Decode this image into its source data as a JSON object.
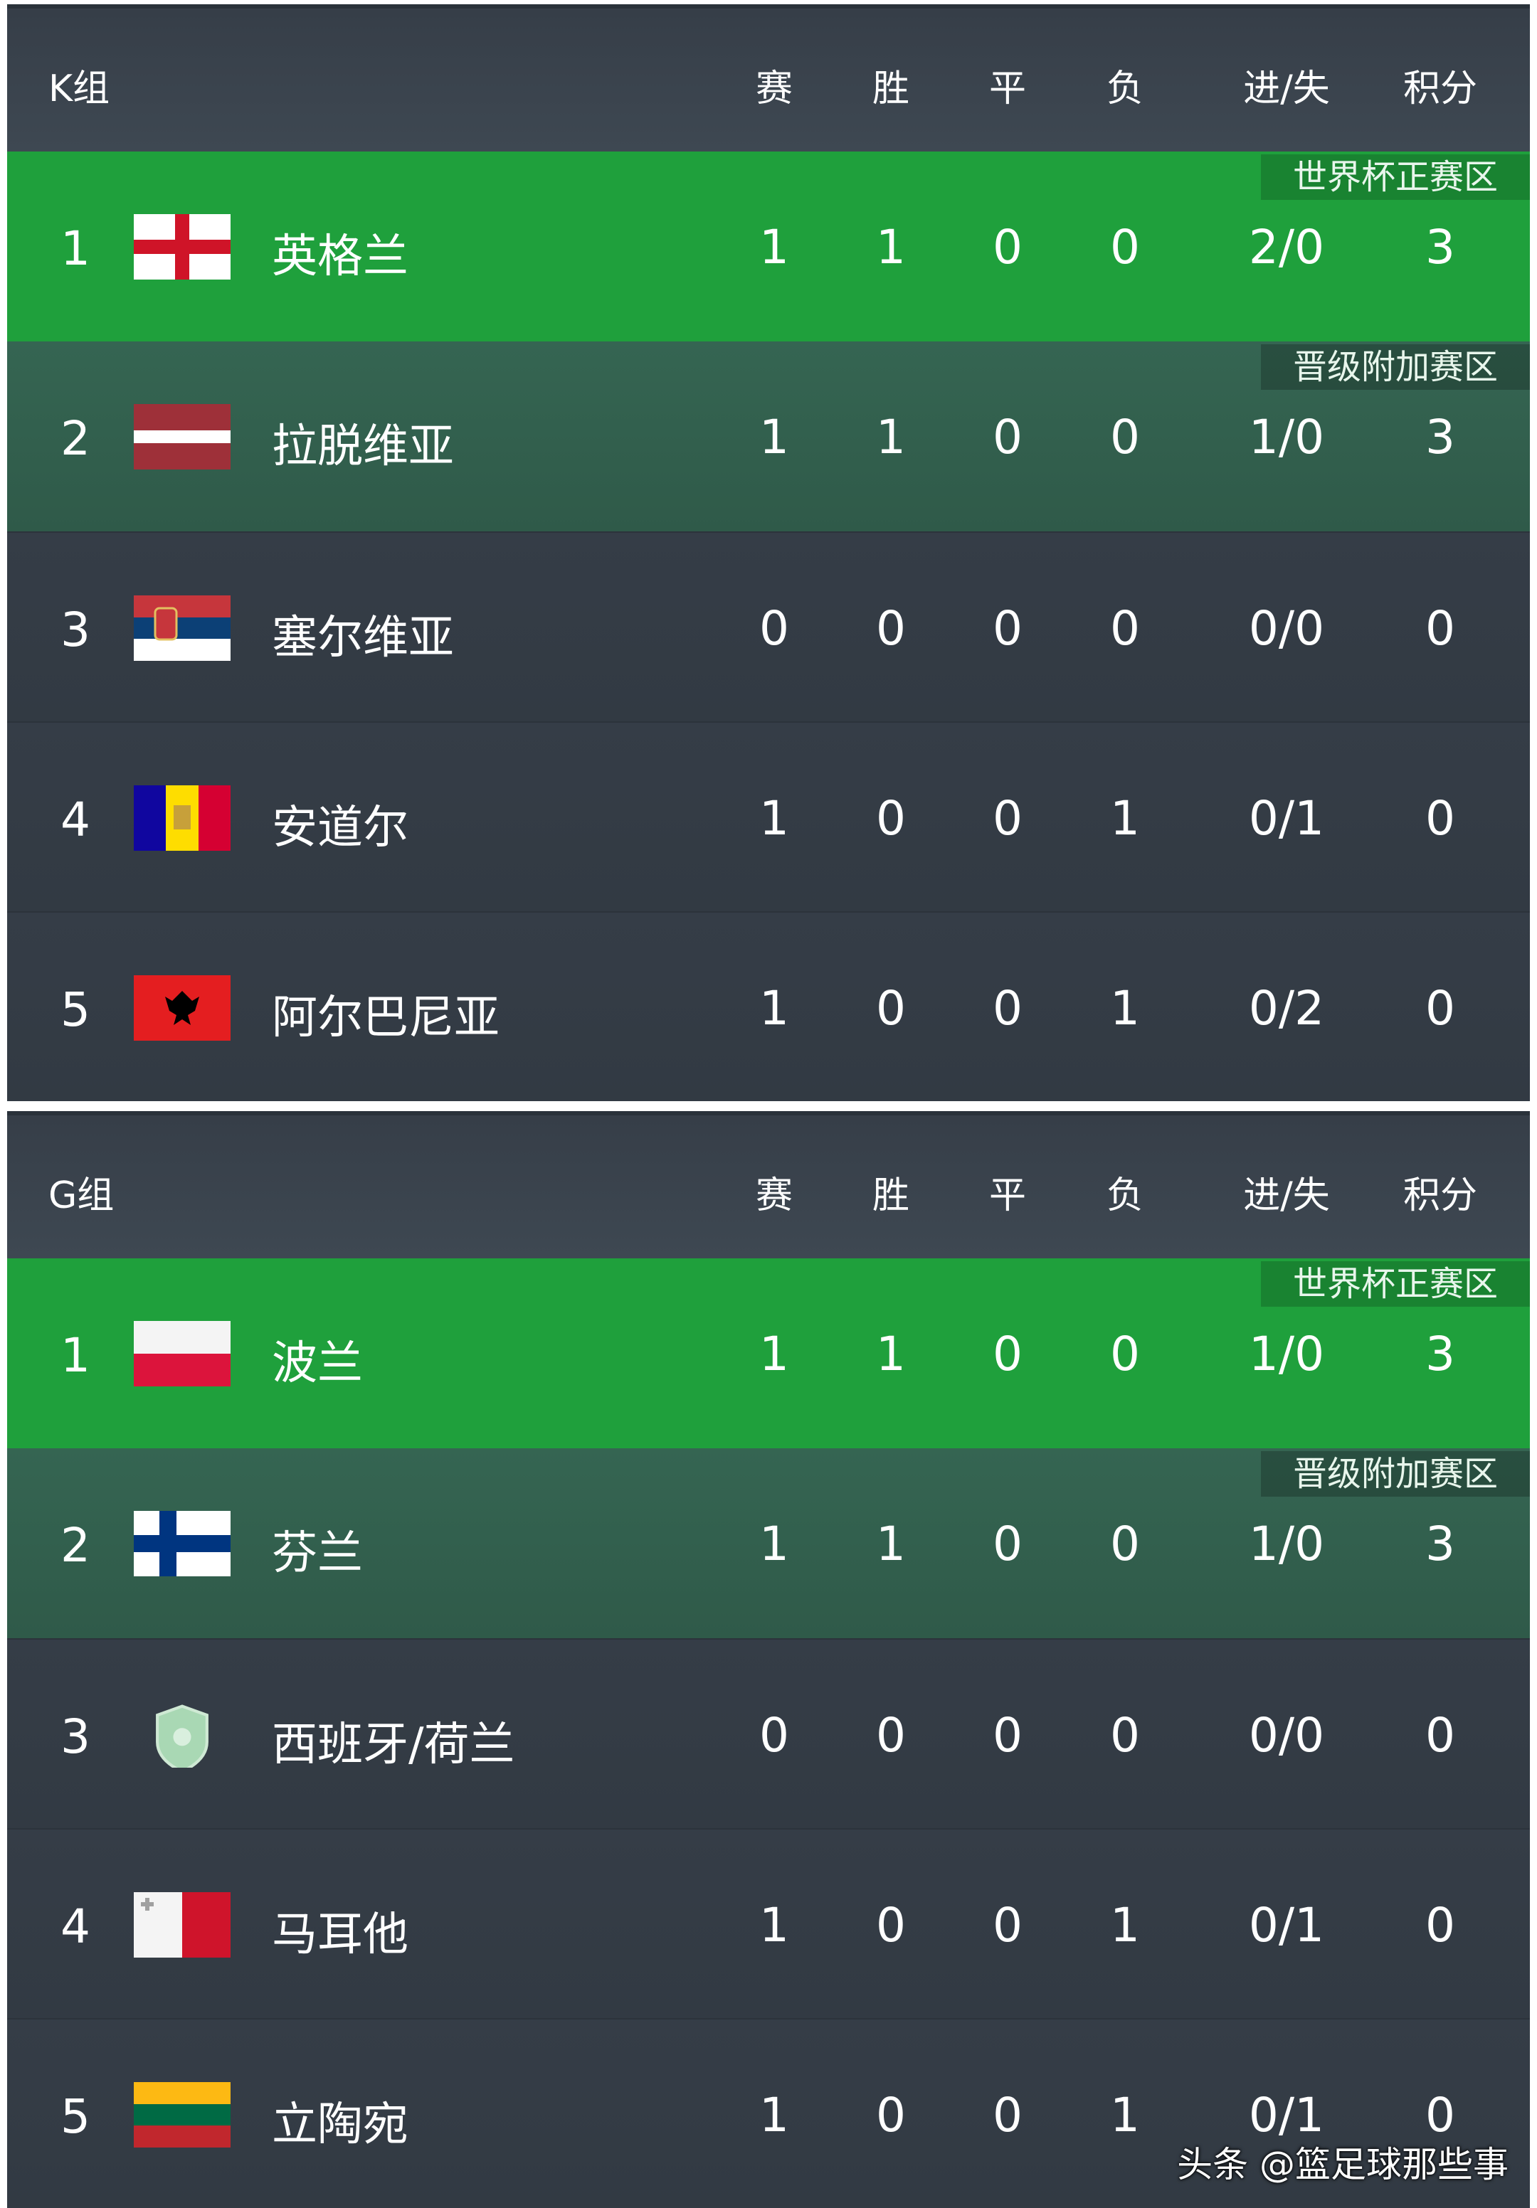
{
  "columns": [
    "赛",
    "胜",
    "平",
    "负",
    "进/失",
    "积分"
  ],
  "colors": {
    "header": "#3d4650",
    "qualify_zone": "#1fa03c",
    "playoff_zone": "#356552",
    "row": "#343c46"
  },
  "groups": [
    {
      "name": "K组",
      "teams": [
        {
          "rank": "1",
          "flag": "england",
          "name": "英格兰",
          "played": "1",
          "won": "1",
          "drawn": "0",
          "lost": "0",
          "goals": "2/0",
          "points": "3",
          "zone": "世界杯正赛区"
        },
        {
          "rank": "2",
          "flag": "latvia",
          "name": "拉脱维亚",
          "played": "1",
          "won": "1",
          "drawn": "0",
          "lost": "0",
          "goals": "1/0",
          "points": "3",
          "zone": "晋级附加赛区"
        },
        {
          "rank": "3",
          "flag": "serbia",
          "name": "塞尔维亚",
          "played": "0",
          "won": "0",
          "drawn": "0",
          "lost": "0",
          "goals": "0/0",
          "points": "0",
          "zone": ""
        },
        {
          "rank": "4",
          "flag": "andorra",
          "name": "安道尔",
          "played": "1",
          "won": "0",
          "drawn": "0",
          "lost": "1",
          "goals": "0/1",
          "points": "0",
          "zone": ""
        },
        {
          "rank": "5",
          "flag": "albania",
          "name": "阿尔巴尼亚",
          "played": "1",
          "won": "0",
          "drawn": "0",
          "lost": "1",
          "goals": "0/2",
          "points": "0",
          "zone": ""
        }
      ]
    },
    {
      "name": "G组",
      "teams": [
        {
          "rank": "1",
          "flag": "poland",
          "name": "波兰",
          "played": "1",
          "won": "1",
          "drawn": "0",
          "lost": "0",
          "goals": "1/0",
          "points": "3",
          "zone": "世界杯正赛区"
        },
        {
          "rank": "2",
          "flag": "finland",
          "name": "芬兰",
          "played": "1",
          "won": "1",
          "drawn": "0",
          "lost": "0",
          "goals": "1/0",
          "points": "3",
          "zone": "晋级附加赛区"
        },
        {
          "rank": "3",
          "flag": "placeholder-shield",
          "name": "西班牙/荷兰",
          "played": "0",
          "won": "0",
          "drawn": "0",
          "lost": "0",
          "goals": "0/0",
          "points": "0",
          "zone": ""
        },
        {
          "rank": "4",
          "flag": "malta",
          "name": "马耳他",
          "played": "1",
          "won": "0",
          "drawn": "0",
          "lost": "1",
          "goals": "0/1",
          "points": "0",
          "zone": ""
        },
        {
          "rank": "5",
          "flag": "lithuania",
          "name": "立陶宛",
          "played": "1",
          "won": "0",
          "drawn": "0",
          "lost": "1",
          "goals": "0/1",
          "points": "0",
          "zone": ""
        }
      ]
    }
  ],
  "footer": "头条 @篮足球那些事"
}
